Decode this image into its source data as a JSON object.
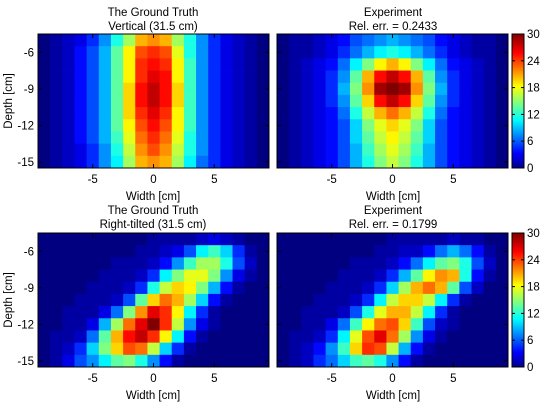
{
  "figure": {
    "colormap": "jet",
    "colorbar": {
      "min": 0,
      "max": 30,
      "ticks": [
        0,
        6,
        12,
        18,
        24,
        30
      ],
      "tick_labels": [
        "0",
        "6",
        "12",
        "18",
        "24",
        "30"
      ]
    }
  },
  "chart_data": [
    {
      "type": "heatmap",
      "title": "The Ground Truth",
      "subtitle": "Vertical (31.5 cm)",
      "xlabel": "Width [cm]",
      "ylabel": "Depth [cm]",
      "xlim": [
        -9.5,
        9.5
      ],
      "ylim": [
        -15.5,
        -4.5
      ],
      "xticks": [
        -5,
        0,
        5
      ],
      "xtick_labels": [
        "-5",
        "0",
        "5"
      ],
      "yticks": [
        -6,
        -9,
        -12,
        -15
      ],
      "ytick_labels": [
        "-6",
        "-9",
        "-12",
        "-15"
      ],
      "x_centers": [
        -9,
        -8,
        -7,
        -6,
        -5,
        -4,
        -3,
        -2,
        -1,
        0,
        1,
        2,
        3,
        4,
        5,
        6,
        7,
        8,
        9
      ],
      "y_centers": [
        -5,
        -6,
        -7,
        -8,
        -9,
        -10,
        -11,
        -12,
        -13,
        -14,
        -15
      ],
      "values": [
        [
          0,
          1,
          2,
          3,
          5,
          8,
          12,
          16,
          21,
          22,
          21,
          16,
          12,
          8,
          5,
          3,
          2,
          1,
          0
        ],
        [
          0,
          1,
          2,
          4,
          6,
          9,
          14,
          19,
          24,
          25,
          24,
          18,
          12,
          8,
          5,
          3,
          2,
          1,
          0
        ],
        [
          0,
          1,
          2,
          4,
          6,
          9,
          14,
          19,
          25,
          26,
          25,
          19,
          13,
          8,
          5,
          3,
          2,
          1,
          0
        ],
        [
          0,
          1,
          2,
          4,
          6,
          9,
          14,
          19,
          25,
          27,
          26,
          19,
          13,
          8,
          5,
          3,
          2,
          1,
          0
        ],
        [
          0,
          1,
          2,
          4,
          6,
          9,
          14,
          20,
          26,
          28,
          26,
          20,
          13,
          8,
          5,
          3,
          2,
          1,
          0
        ],
        [
          0,
          1,
          2,
          4,
          6,
          9,
          14,
          20,
          26,
          28,
          26,
          20,
          13,
          8,
          5,
          3,
          2,
          1,
          0
        ],
        [
          0,
          1,
          2,
          4,
          6,
          9,
          14,
          20,
          25,
          27,
          25,
          19,
          13,
          8,
          5,
          3,
          2,
          1,
          0
        ],
        [
          0,
          1,
          2,
          4,
          6,
          9,
          14,
          19,
          24,
          26,
          24,
          19,
          13,
          8,
          5,
          3,
          2,
          1,
          0
        ],
        [
          0,
          1,
          2,
          4,
          6,
          9,
          13,
          18,
          23,
          25,
          23,
          18,
          12,
          8,
          5,
          3,
          2,
          1,
          0
        ],
        [
          0,
          1,
          2,
          3,
          5,
          8,
          12,
          17,
          22,
          24,
          22,
          17,
          12,
          8,
          5,
          3,
          2,
          1,
          0
        ],
        [
          0,
          1,
          2,
          3,
          5,
          8,
          11,
          16,
          21,
          22,
          21,
          16,
          11,
          7,
          5,
          3,
          2,
          1,
          0
        ]
      ]
    },
    {
      "type": "heatmap",
      "title": "Experiment",
      "subtitle": "Rel. err. = 0.2433",
      "xlabel": "Width [cm]",
      "ylabel": "",
      "xlim": [
        -9.5,
        9.5
      ],
      "ylim": [
        -15.5,
        -4.5
      ],
      "xticks": [
        -5,
        0,
        5
      ],
      "xtick_labels": [
        "-5",
        "0",
        "5"
      ],
      "yticks": [
        -6,
        -9,
        -12,
        -15
      ],
      "ytick_labels": [],
      "x_centers": [
        -9,
        -8,
        -7,
        -6,
        -5,
        -4,
        -3,
        -2,
        -1,
        0,
        1,
        2,
        3,
        4,
        5,
        6,
        7,
        8,
        9
      ],
      "y_centers": [
        -5,
        -6,
        -7,
        -8,
        -9,
        -10,
        -11,
        -12,
        -13,
        -14,
        -15
      ],
      "values": [
        [
          0,
          1,
          1,
          2,
          3,
          4,
          6,
          7,
          8,
          9,
          8,
          7,
          6,
          4,
          3,
          2,
          1,
          1,
          0
        ],
        [
          0,
          1,
          1,
          2,
          3,
          5,
          7,
          9,
          11,
          12,
          11,
          9,
          7,
          5,
          3,
          2,
          1,
          1,
          0
        ],
        [
          0,
          1,
          2,
          3,
          4,
          7,
          11,
          15,
          19,
          21,
          19,
          15,
          11,
          7,
          4,
          3,
          2,
          1,
          0
        ],
        [
          0,
          1,
          2,
          3,
          5,
          8,
          14,
          21,
          26,
          28,
          26,
          21,
          14,
          8,
          5,
          3,
          2,
          1,
          0
        ],
        [
          0,
          1,
          2,
          3,
          5,
          9,
          15,
          22,
          29,
          30,
          29,
          22,
          15,
          9,
          5,
          3,
          2,
          1,
          0
        ],
        [
          0,
          1,
          2,
          3,
          5,
          8,
          14,
          20,
          26,
          28,
          26,
          20,
          14,
          8,
          5,
          3,
          2,
          1,
          0
        ],
        [
          0,
          1,
          2,
          3,
          4,
          7,
          12,
          17,
          21,
          23,
          21,
          17,
          12,
          7,
          4,
          3,
          2,
          1,
          0
        ],
        [
          0,
          1,
          2,
          3,
          4,
          6,
          10,
          15,
          18,
          20,
          18,
          15,
          10,
          6,
          4,
          3,
          2,
          1,
          0
        ],
        [
          0,
          1,
          2,
          3,
          4,
          6,
          10,
          14,
          17,
          19,
          17,
          14,
          10,
          6,
          4,
          3,
          2,
          1,
          0
        ],
        [
          0,
          1,
          2,
          3,
          4,
          6,
          9,
          13,
          16,
          18,
          16,
          13,
          9,
          6,
          4,
          3,
          2,
          1,
          0
        ],
        [
          0,
          1,
          2,
          3,
          4,
          6,
          9,
          12,
          15,
          17,
          15,
          12,
          9,
          6,
          4,
          3,
          2,
          1,
          0
        ]
      ]
    },
    {
      "type": "heatmap",
      "title": "The Ground Truth",
      "subtitle": "Right-tilted (31.5 cm)",
      "xlabel": "Width [cm]",
      "ylabel": "Depth [cm]",
      "xlim": [
        -9.5,
        9.5
      ],
      "ylim": [
        -15.5,
        -4.5
      ],
      "xticks": [
        -5,
        0,
        5
      ],
      "xtick_labels": [
        "-5",
        "0",
        "5"
      ],
      "yticks": [
        -6,
        -9,
        -12,
        -15
      ],
      "ytick_labels": [
        "-6",
        "-9",
        "-12",
        "-15"
      ],
      "x_centers": [
        -9,
        -8,
        -7,
        -6,
        -5,
        -4,
        -3,
        -2,
        -1,
        0,
        1,
        2,
        3,
        4,
        5,
        6,
        7,
        8,
        9
      ],
      "y_centers": [
        -5,
        -6,
        -7,
        -8,
        -9,
        -10,
        -11,
        -12,
        -13,
        -14,
        -15
      ],
      "values": [
        [
          0,
          0,
          0,
          0,
          0,
          0,
          0,
          0,
          0,
          1,
          1,
          1,
          1,
          2,
          3,
          2,
          1,
          0,
          0
        ],
        [
          0,
          0,
          0,
          0,
          0,
          0,
          0,
          0,
          1,
          1,
          2,
          3,
          6,
          11,
          13,
          10,
          5,
          1,
          0
        ],
        [
          0,
          0,
          0,
          0,
          0,
          0,
          1,
          1,
          1,
          2,
          4,
          8,
          13,
          16,
          16,
          12,
          6,
          2,
          0
        ],
        [
          0,
          0,
          0,
          0,
          0,
          1,
          1,
          1,
          2,
          5,
          11,
          15,
          18,
          18,
          15,
          8,
          3,
          1,
          0
        ],
        [
          0,
          0,
          0,
          0,
          1,
          1,
          1,
          2,
          5,
          12,
          17,
          20,
          19,
          15,
          9,
          4,
          1,
          0,
          0
        ],
        [
          0,
          0,
          0,
          1,
          1,
          1,
          2,
          6,
          14,
          20,
          23,
          21,
          16,
          10,
          4,
          1,
          0,
          0,
          0
        ],
        [
          0,
          0,
          1,
          1,
          1,
          3,
          7,
          15,
          22,
          27,
          25,
          19,
          11,
          5,
          1,
          0,
          0,
          0,
          0
        ],
        [
          0,
          0,
          1,
          1,
          3,
          9,
          16,
          23,
          27,
          30,
          25,
          17,
          8,
          3,
          1,
          0,
          0,
          0,
          0
        ],
        [
          0,
          1,
          1,
          2,
          7,
          14,
          21,
          26,
          28,
          25,
          19,
          11,
          4,
          1,
          0,
          0,
          0,
          0,
          0
        ],
        [
          0,
          1,
          2,
          5,
          10,
          15,
          20,
          24,
          23,
          17,
          10,
          5,
          1,
          0,
          0,
          0,
          0,
          0,
          0
        ],
        [
          0,
          1,
          3,
          6,
          8,
          11,
          14,
          15,
          12,
          8,
          4,
          1,
          0,
          0,
          0,
          0,
          0,
          0,
          0
        ]
      ]
    },
    {
      "type": "heatmap",
      "title": "Experiment",
      "subtitle": "Rel. err. = 0.1799",
      "xlabel": "Width [cm]",
      "ylabel": "",
      "xlim": [
        -9.5,
        9.5
      ],
      "ylim": [
        -15.5,
        -4.5
      ],
      "xticks": [
        -5,
        0,
        5
      ],
      "xtick_labels": [
        "-5",
        "0",
        "5"
      ],
      "yticks": [
        -6,
        -9,
        -12,
        -15
      ],
      "ytick_labels": [],
      "x_centers": [
        -9,
        -8,
        -7,
        -6,
        -5,
        -4,
        -3,
        -2,
        -1,
        0,
        1,
        2,
        3,
        4,
        5,
        6,
        7,
        8,
        9
      ],
      "y_centers": [
        -5,
        -6,
        -7,
        -8,
        -9,
        -10,
        -11,
        -12,
        -13,
        -14,
        -15
      ],
      "values": [
        [
          0,
          0,
          0,
          0,
          0,
          0,
          0,
          0,
          0,
          1,
          1,
          1,
          1,
          1,
          2,
          1,
          1,
          0,
          0
        ],
        [
          0,
          0,
          0,
          0,
          0,
          0,
          0,
          0,
          1,
          1,
          2,
          2,
          4,
          7,
          9,
          7,
          4,
          1,
          0
        ],
        [
          0,
          0,
          0,
          0,
          0,
          0,
          1,
          1,
          1,
          2,
          4,
          7,
          11,
          14,
          15,
          12,
          6,
          2,
          0
        ],
        [
          0,
          0,
          0,
          0,
          0,
          1,
          1,
          1,
          2,
          5,
          9,
          14,
          19,
          22,
          21,
          12,
          4,
          1,
          0
        ],
        [
          0,
          0,
          0,
          0,
          1,
          1,
          1,
          2,
          5,
          10,
          16,
          21,
          23,
          21,
          14,
          6,
          2,
          0,
          0
        ],
        [
          0,
          0,
          0,
          1,
          1,
          1,
          2,
          5,
          11,
          17,
          20,
          20,
          17,
          11,
          5,
          1,
          0,
          0,
          0
        ],
        [
          0,
          0,
          1,
          1,
          1,
          2,
          6,
          12,
          18,
          21,
          21,
          17,
          11,
          5,
          1,
          0,
          0,
          0,
          0
        ],
        [
          0,
          0,
          1,
          1,
          3,
          7,
          13,
          19,
          23,
          24,
          20,
          13,
          6,
          2,
          1,
          0,
          0,
          0,
          0
        ],
        [
          0,
          1,
          1,
          2,
          5,
          11,
          18,
          24,
          27,
          23,
          16,
          8,
          3,
          1,
          0,
          0,
          0,
          0,
          0
        ],
        [
          0,
          1,
          2,
          4,
          8,
          13,
          20,
          25,
          24,
          17,
          9,
          4,
          1,
          0,
          0,
          0,
          0,
          0,
          0
        ],
        [
          0,
          1,
          2,
          5,
          7,
          10,
          13,
          14,
          12,
          8,
          4,
          1,
          0,
          0,
          0,
          0,
          0,
          0,
          0
        ]
      ]
    }
  ]
}
